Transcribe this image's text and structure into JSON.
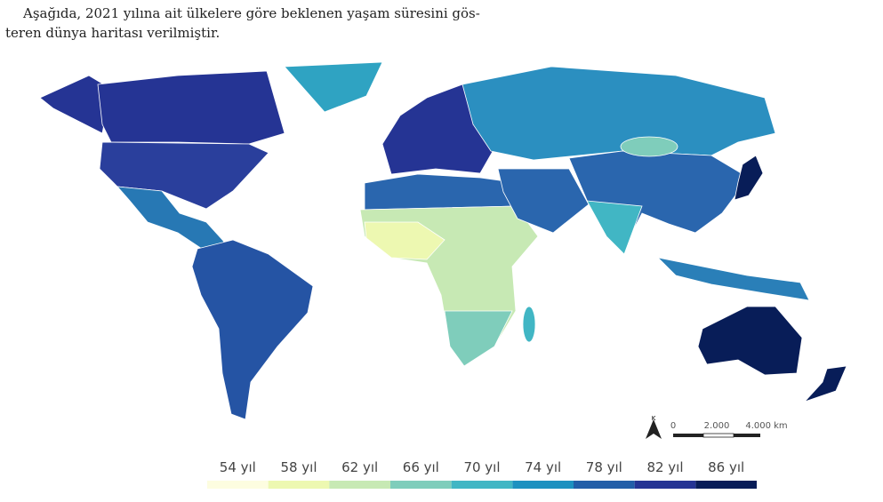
{
  "intro": {
    "lines": [
      "Aşağıda, 2021 yılına ait ülkelere göre beklenen yaşam süresini gös-",
      "teren dünya haritası verilmiştir."
    ]
  },
  "scale_bar": {
    "north": "K",
    "labels": [
      "0",
      "2.000",
      "4.000 km"
    ]
  },
  "legend": {
    "items": [
      {
        "label": "54 yıl",
        "color": "#fdfde0"
      },
      {
        "label": "58 yıl",
        "color": "#edf8b1"
      },
      {
        "label": "62 yıl",
        "color": "#c7e9b4"
      },
      {
        "label": "66 yıl",
        "color": "#7fcdbb"
      },
      {
        "label": "70 yıl",
        "color": "#41b6c4"
      },
      {
        "label": "74 yıl",
        "color": "#1d91c0"
      },
      {
        "label": "78 yıl",
        "color": "#225ea8"
      },
      {
        "label": "82 yıl",
        "color": "#253494"
      },
      {
        "label": "86 yıl",
        "color": "#081d58"
      }
    ]
  }
}
